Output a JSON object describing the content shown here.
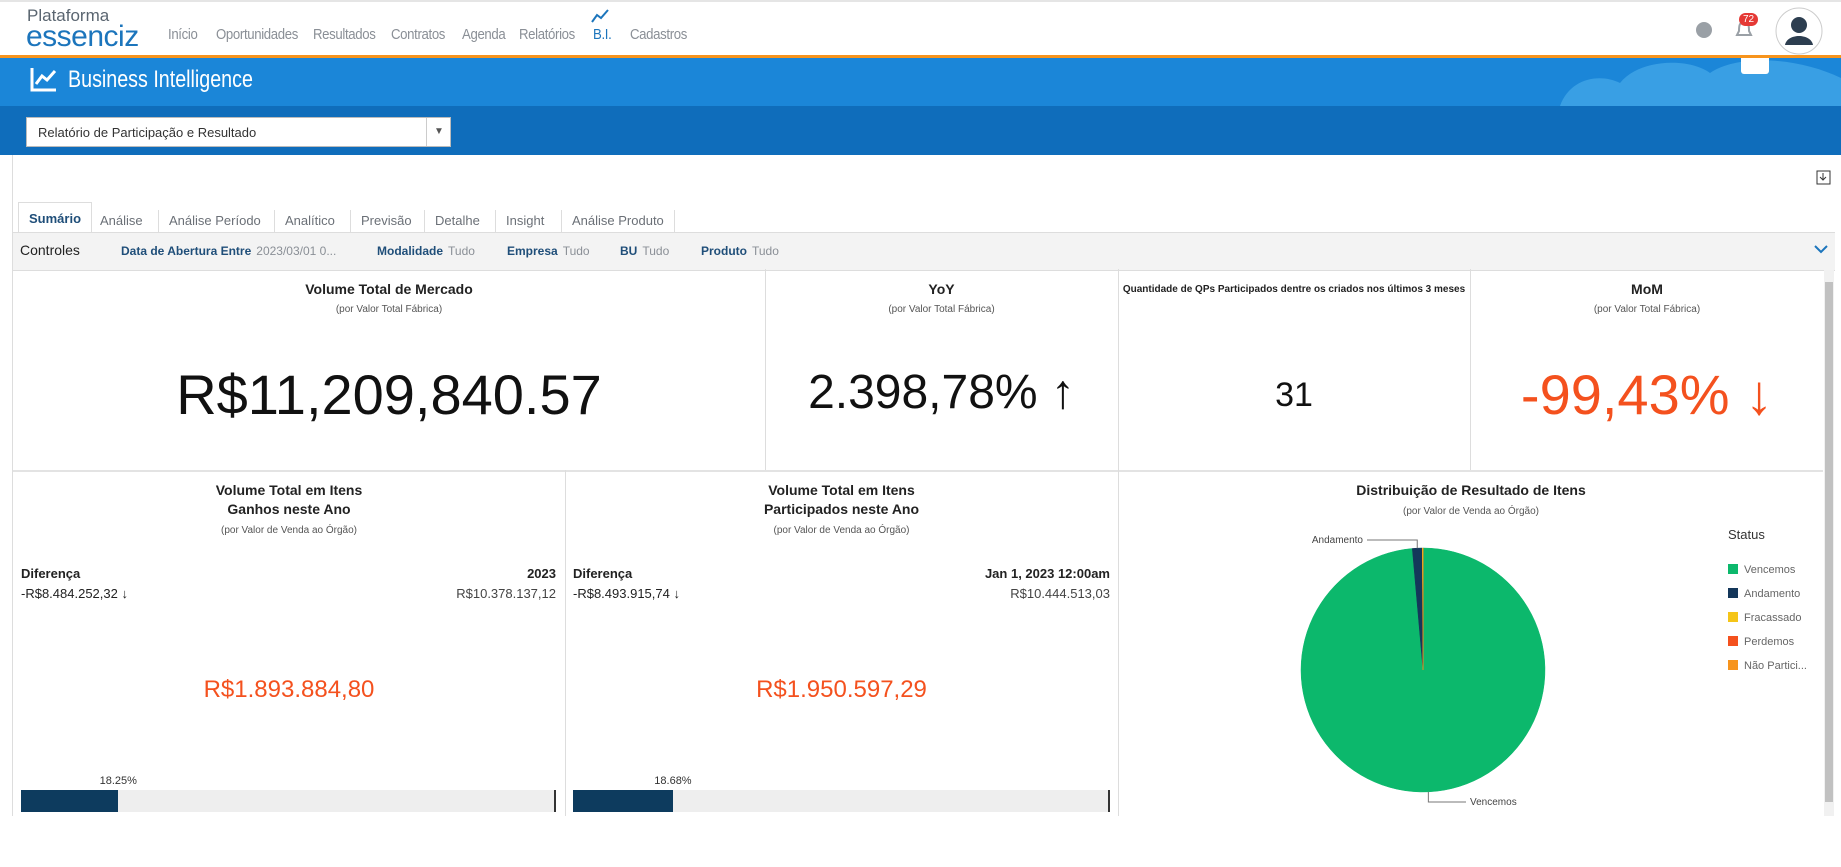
{
  "header": {
    "logo_top": "Plataforma",
    "logo_bottom": "essenciz",
    "nav": [
      "Início",
      "Oportunidades",
      "Resultados",
      "Contratos",
      "Agenda",
      "Relatórios",
      "B.I.",
      "Cadastros"
    ],
    "notifications": "72"
  },
  "banner": {
    "title": "Business Intelligence",
    "report_select": "Relatório de Participação e Resultado"
  },
  "tabs": [
    "Sumário",
    "Análise",
    "Análise Período",
    "Analítico",
    "Previsão",
    "Detalhe",
    "Insight",
    "Análise Produto"
  ],
  "controls": {
    "label": "Controles",
    "filters": [
      {
        "name": "Data de Abertura Entre",
        "value": "2023/03/01 0..."
      },
      {
        "name": "Modalidade",
        "value": "Tudo"
      },
      {
        "name": "Empresa",
        "value": "Tudo"
      },
      {
        "name": "BU",
        "value": "Tudo"
      },
      {
        "name": "Produto",
        "value": "Tudo"
      }
    ]
  },
  "kpis": [
    {
      "title": "Volume Total de Mercado",
      "subtitle": "(por Valor Total Fábrica)",
      "value": "R$11,209,840.57"
    },
    {
      "title": "YoY",
      "subtitle": "(por Valor Total Fábrica)",
      "value": "2.398,78% ↑"
    },
    {
      "title": "Quantidade de QPs Participados dentre os criados nos últimos 3 meses",
      "value": "31"
    },
    {
      "title": "MoM",
      "subtitle": "(por Valor Total Fábrica)",
      "value": "-99,43% ↓"
    }
  ],
  "comparisons": [
    {
      "title_lines": [
        "Volume Total em Itens",
        "Ganhos neste Ano"
      ],
      "subtitle": "(por Valor de Venda ao Órgão)",
      "diff_label": "Diferença",
      "diff_value": "-R$8.484.252,32 ↓",
      "ref_label": "2023",
      "ref_value": "R$10.378.137,12",
      "value": "R$1.893.884,80",
      "progress": {
        "value": 18.25,
        "label": "18.25%"
      }
    },
    {
      "title_lines": [
        "Volume Total em Itens",
        "Participados neste Ano"
      ],
      "subtitle": "(por Valor de Venda ao Órgão)",
      "diff_label": "Diferença",
      "diff_value": "-R$8.493.915,74 ↓",
      "ref_label": "Jan 1, 2023 12:00am",
      "ref_value": "R$10.444.513,03",
      "value": "R$1.950.597,29",
      "progress": {
        "value": 18.68,
        "label": "18.68%"
      }
    }
  ],
  "chart_data": {
    "type": "pie",
    "title": "Distribuição de Resultado de Itens",
    "subtitle": "(por Valor de Venda ao Órgão)",
    "legend_title": "Status",
    "categories": [
      "Vencemos",
      "Andamento",
      "Fracassado",
      "Perdemos",
      "Não Partici..."
    ],
    "values": [
      98.6,
      1.3,
      0.1,
      0,
      0
    ],
    "colors": [
      "#0cb86c",
      "#14375a",
      "#f5c518",
      "#f4511e",
      "#f7941d"
    ]
  }
}
